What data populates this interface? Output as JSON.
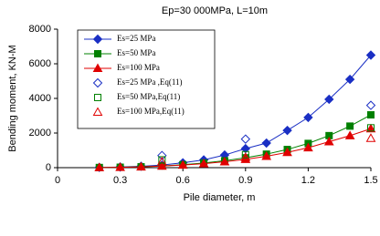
{
  "chart_data": {
    "type": "line",
    "title": "Ep=30 000MPa,  L=10m",
    "xlabel": "Pile diameter, m",
    "ylabel": "Bending moment, KN-M",
    "xlim": [
      0,
      1.5
    ],
    "xticks": [
      0,
      0.3,
      0.6,
      0.9,
      1.2,
      1.5
    ],
    "ylim": [
      0,
      8000
    ],
    "yticks": [
      0,
      2000,
      4000,
      6000,
      8000
    ],
    "grid": false,
    "legend": "upper left",
    "series": [
      {
        "name": "Es=25 MPa",
        "color": "#1a2fc4",
        "marker": "diamond",
        "filled": true,
        "line": true,
        "x": [
          0.2,
          0.3,
          0.4,
          0.5,
          0.6,
          0.7,
          0.8,
          0.9,
          1.0,
          1.1,
          1.2,
          1.3,
          1.4,
          1.5
        ],
        "values": [
          15,
          40,
          80,
          150,
          280,
          450,
          730,
          1100,
          1420,
          2150,
          2900,
          3950,
          5100,
          6500
        ]
      },
      {
        "name": "Es=50 MPa",
        "color": "#008000",
        "marker": "square",
        "filled": true,
        "line": true,
        "x": [
          0.2,
          0.3,
          0.4,
          0.5,
          0.6,
          0.7,
          0.8,
          0.9,
          1.0,
          1.1,
          1.2,
          1.3,
          1.4,
          1.5
        ],
        "values": [
          10,
          25,
          50,
          100,
          170,
          270,
          400,
          570,
          780,
          1050,
          1400,
          1850,
          2400,
          3050
        ]
      },
      {
        "name": "Es=100 MPa",
        "color": "#e00000",
        "marker": "triangle",
        "filled": true,
        "line": true,
        "x": [
          0.2,
          0.3,
          0.4,
          0.5,
          0.6,
          0.7,
          0.8,
          0.9,
          1.0,
          1.1,
          1.2,
          1.3,
          1.4,
          1.5
        ],
        "values": [
          8,
          20,
          45,
          90,
          150,
          230,
          340,
          480,
          660,
          880,
          1150,
          1500,
          1850,
          2250
        ]
      },
      {
        "name": "Es=25 MPa ,Eq(11)",
        "color": "#1a2fc4",
        "marker": "diamond",
        "filled": false,
        "line": false,
        "x": [
          0.5,
          0.9,
          1.5
        ],
        "values": [
          700,
          1650,
          3600
        ]
      },
      {
        "name": "Es=50 MPa,Eq(11)",
        "color": "#008000",
        "marker": "square",
        "filled": false,
        "line": false,
        "x": [
          0.5,
          0.9,
          1.5
        ],
        "values": [
          450,
          750,
          2300
        ]
      },
      {
        "name": "Es=100 MPa,Eq(11)",
        "color": "#e00000",
        "marker": "triangle",
        "filled": false,
        "line": false,
        "x": [
          0.5,
          0.9,
          1.5
        ],
        "values": [
          350,
          600,
          1700
        ]
      }
    ]
  }
}
